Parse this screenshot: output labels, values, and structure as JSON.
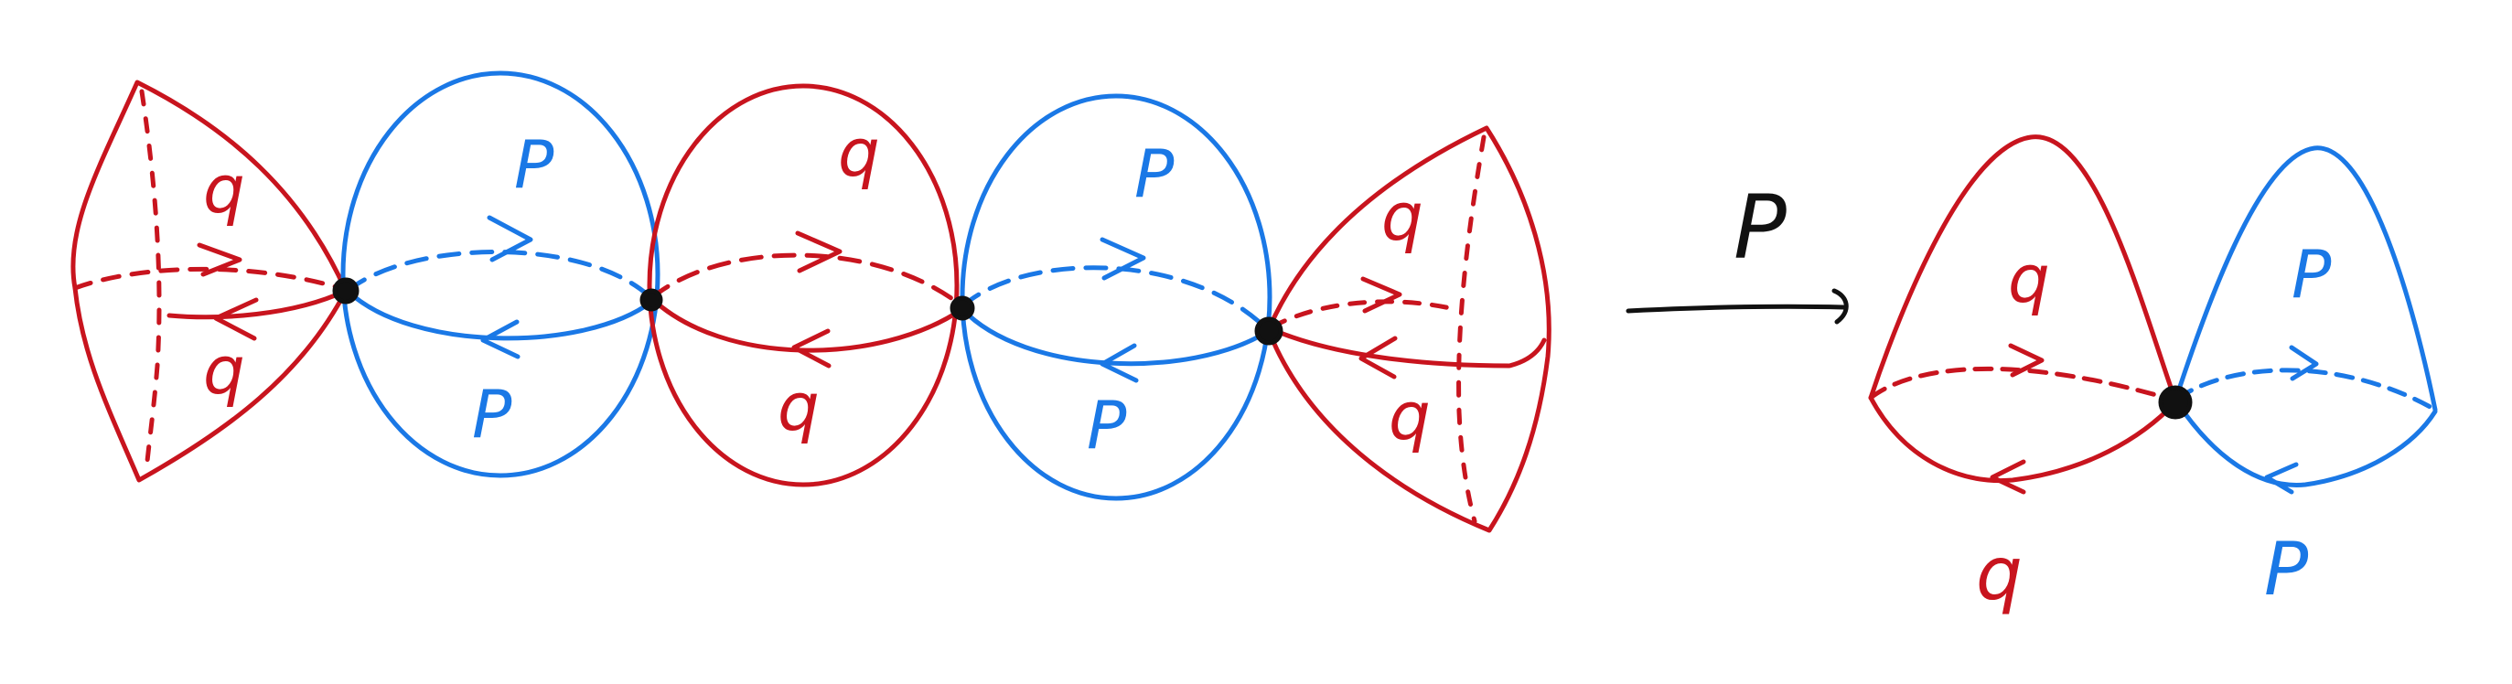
{
  "colors": {
    "red": "#c8141e",
    "blue": "#1a78e6",
    "black": "#111111",
    "background": "#ffffff"
  },
  "left_chain": {
    "labels": {
      "cap_left_top": "q",
      "cap_left_bottom": "q",
      "sphere1_top": "P",
      "sphere1_bottom": "P",
      "sphere2_top": "q",
      "sphere2_bottom": "q",
      "sphere3_top": "P",
      "sphere3_bottom": "P",
      "cap_right_top": "q",
      "cap_right_bottom": "q"
    }
  },
  "map": {
    "label": "P"
  },
  "right_result": {
    "labels": {
      "red_lobe_top": "q",
      "red_lobe_bottom": "q",
      "blue_lobe_top": "P",
      "blue_lobe_bottom": "P"
    }
  }
}
